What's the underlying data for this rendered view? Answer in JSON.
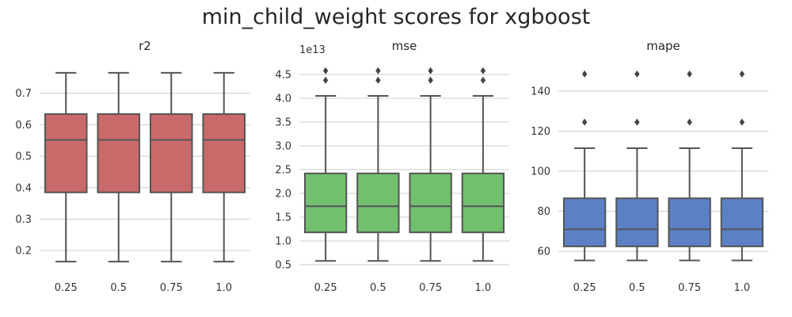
{
  "title": "min_child_weight scores for xgboost",
  "chart_data": [
    {
      "type": "box",
      "title": "r2",
      "categories": [
        "0.25",
        "0.5",
        "0.75",
        "1.0"
      ],
      "yticks": [
        "0.2",
        "0.3",
        "0.4",
        "0.5",
        "0.6",
        "0.7"
      ],
      "ylim": [
        0.14,
        0.79
      ],
      "color": "#c96a6a",
      "grid": true,
      "boxes": [
        {
          "whisker_low": 0.165,
          "q1": 0.385,
          "median": 0.552,
          "q3": 0.634,
          "whisker_high": 0.765,
          "outliers": []
        },
        {
          "whisker_low": 0.165,
          "q1": 0.385,
          "median": 0.552,
          "q3": 0.634,
          "whisker_high": 0.765,
          "outliers": []
        },
        {
          "whisker_low": 0.165,
          "q1": 0.385,
          "median": 0.552,
          "q3": 0.634,
          "whisker_high": 0.765,
          "outliers": []
        },
        {
          "whisker_low": 0.165,
          "q1": 0.385,
          "median": 0.552,
          "q3": 0.634,
          "whisker_high": 0.765,
          "outliers": []
        }
      ]
    },
    {
      "type": "box",
      "title": "mse",
      "scale_label": "1e13",
      "categories": [
        "0.25",
        "0.5",
        "0.75",
        "1.0"
      ],
      "yticks": [
        "0.5",
        "1.0",
        "1.5",
        "2.0",
        "2.5",
        "3.0",
        "3.5",
        "4.0",
        "4.5"
      ],
      "ylim": [
        0.4,
        4.7
      ],
      "color": "#72bf6e",
      "grid": true,
      "boxes": [
        {
          "whisker_low": 0.58,
          "q1": 1.18,
          "median": 1.73,
          "q3": 2.42,
          "whisker_high": 4.05,
          "outliers": [
            4.38,
            4.58
          ]
        },
        {
          "whisker_low": 0.58,
          "q1": 1.18,
          "median": 1.73,
          "q3": 2.42,
          "whisker_high": 4.05,
          "outliers": [
            4.38,
            4.58
          ]
        },
        {
          "whisker_low": 0.58,
          "q1": 1.18,
          "median": 1.73,
          "q3": 2.42,
          "whisker_high": 4.05,
          "outliers": [
            4.38,
            4.58
          ]
        },
        {
          "whisker_low": 0.58,
          "q1": 1.18,
          "median": 1.73,
          "q3": 2.42,
          "whisker_high": 4.05,
          "outliers": [
            4.38,
            4.58
          ]
        }
      ]
    },
    {
      "type": "box",
      "title": "mape",
      "categories": [
        "0.25",
        "0.5",
        "0.75",
        "1.0"
      ],
      "yticks": [
        "60",
        "80",
        "100",
        "120",
        "140"
      ],
      "ylim": [
        51,
        153
      ],
      "color": "#5b80c6",
      "grid": true,
      "boxes": [
        {
          "whisker_low": 55.5,
          "q1": 62.5,
          "median": 71,
          "q3": 86.5,
          "whisker_high": 111.5,
          "outliers": [
            124.5,
            148.5
          ]
        },
        {
          "whisker_low": 55.5,
          "q1": 62.5,
          "median": 71,
          "q3": 86.5,
          "whisker_high": 111.5,
          "outliers": [
            124.5,
            148.5
          ]
        },
        {
          "whisker_low": 55.5,
          "q1": 62.5,
          "median": 71,
          "q3": 86.5,
          "whisker_high": 111.5,
          "outliers": [
            124.5,
            148.5
          ]
        },
        {
          "whisker_low": 55.5,
          "q1": 62.5,
          "median": 71,
          "q3": 86.5,
          "whisker_high": 111.5,
          "outliers": [
            124.5,
            148.5
          ]
        }
      ]
    }
  ]
}
